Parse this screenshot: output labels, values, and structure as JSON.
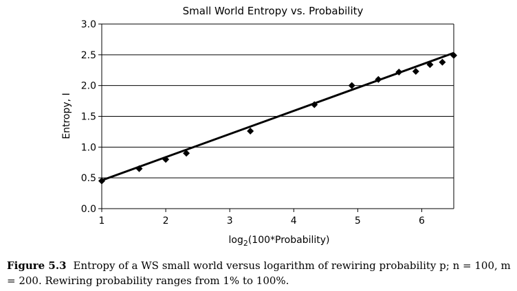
{
  "chart_data": {
    "type": "scatter",
    "title": "Small World Entropy vs. Probability",
    "xlabel": "log₂(100*Probability)",
    "xlabel_base": "log",
    "xlabel_sub": "2",
    "xlabel_rest": "(100*Probability)",
    "ylabel": "Entropy, I",
    "xlim": [
      1,
      6.5
    ],
    "ylim": [
      0,
      3
    ],
    "xticks": [
      "1",
      "2",
      "3",
      "4",
      "5",
      "6"
    ],
    "yticks": [
      "0.0",
      "0.5",
      "1.0",
      "1.5",
      "2.0",
      "2.5",
      "3.0"
    ],
    "grid": "horizontal",
    "series": [
      {
        "marker": "diamond",
        "color": "#000000",
        "x": [
          1.0,
          1.585,
          2.0,
          2.322,
          3.322,
          4.322,
          4.907,
          5.322,
          5.644,
          5.907,
          6.129,
          6.322,
          6.5
        ],
        "y": [
          0.45,
          0.65,
          0.8,
          0.9,
          1.26,
          1.69,
          2.0,
          2.1,
          2.22,
          2.23,
          2.34,
          2.38,
          2.49
        ]
      }
    ],
    "trendline": {
      "x": [
        1.0,
        6.5
      ],
      "y": [
        0.46,
        2.53
      ],
      "color": "#000000"
    }
  },
  "caption": {
    "label": "Figure 5.3",
    "text": "Entropy of a WS small world versus logarithm of rewiring probability p; n = 100, m = 200. Rewiring probability ranges from 1% to 100%."
  }
}
